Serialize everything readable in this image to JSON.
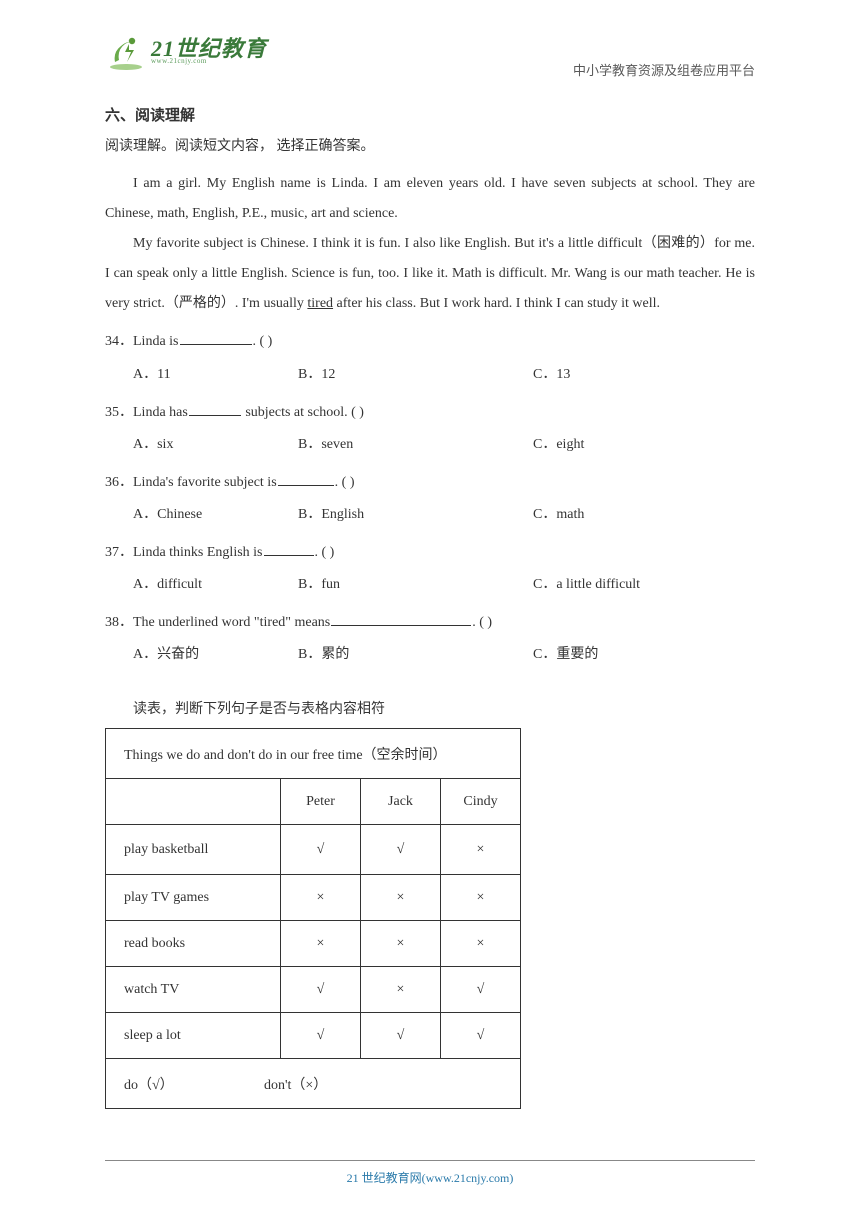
{
  "header": {
    "logo_main": "21世纪教育",
    "logo_sub": "www.21cnjy.com",
    "right_text": "中小学教育资源及组卷应用平台",
    "logo_colors": {
      "main": "#3a7a3a",
      "sub": "#5a9a5a"
    }
  },
  "section": {
    "title": "六、阅读理解",
    "instruction": "阅读理解。阅读短文内容，  选择正确答案。"
  },
  "passage": {
    "p1_a": "I am a girl. My English name is Linda. I am eleven years old. I have seven subjects at school. They are Chinese, math, English, P.E., music, art and science.",
    "p2_a": "My favorite subject is Chinese. I think it is fun. I also like English. But it's a little difficult（困难的）for me. I can speak only a little English. Science is fun, too. I like it. Math is difficult. Mr. Wang is our math teacher. He is very strict.（严格的）. I'm usually ",
    "p2_u": "tired",
    "p2_b": " after his class. But I work hard. I think I can study it well."
  },
  "questions": [
    {
      "num": "34",
      "stem_a": "．Linda is",
      "blank_w": 72,
      "stem_b": ". (    )",
      "A": "A．11",
      "B": "B．12",
      "C": "C．13"
    },
    {
      "num": "35",
      "stem_a": "．Linda has",
      "blank_w": 52,
      "stem_b": " subjects at school. (    )",
      "A": "A．six",
      "B": "B．seven",
      "C": "C．eight"
    },
    {
      "num": "36",
      "stem_a": "．Linda's favorite subject is",
      "blank_w": 56,
      "stem_b": ". (    )",
      "A": "A．Chinese",
      "B": "B．English",
      "C": "C．math"
    },
    {
      "num": "37",
      "stem_a": "．Linda thinks English is",
      "blank_w": 50,
      "stem_b": ". (    )",
      "A": "A．difficult",
      "B": "B．fun",
      "C": "C．a little difficult"
    },
    {
      "num": "38",
      "stem_a": "．The underlined word \"tired\" means",
      "blank_w": 140,
      "stem_b": ". (    )",
      "A": "A．兴奋的",
      "B": "B．累的",
      "C": "C．重要的"
    }
  ],
  "table": {
    "intro": "读表，判断下列句子是否与表格内容相符",
    "title": "Things   we do and don't do in our free time（空余时间）",
    "cols": [
      "Peter",
      "Jack",
      "Cindy"
    ],
    "rows": [
      {
        "label": "play   basketball",
        "cells": [
          "√",
          "√",
          "×"
        ]
      },
      {
        "label": "play   TV games",
        "cells": [
          "×",
          "×",
          "×"
        ]
      },
      {
        "label": "read   books",
        "cells": [
          "×",
          "×",
          "×"
        ]
      },
      {
        "label": "watch   TV",
        "cells": [
          "√",
          "×",
          "√"
        ]
      },
      {
        "label": "sleep   a lot",
        "cells": [
          "√",
          "√",
          "√"
        ]
      }
    ],
    "legend_a": "do（√）",
    "legend_b": "don't（×）"
  },
  "footer": {
    "text": "21 世纪教育网(www.21cnjy.com)"
  }
}
